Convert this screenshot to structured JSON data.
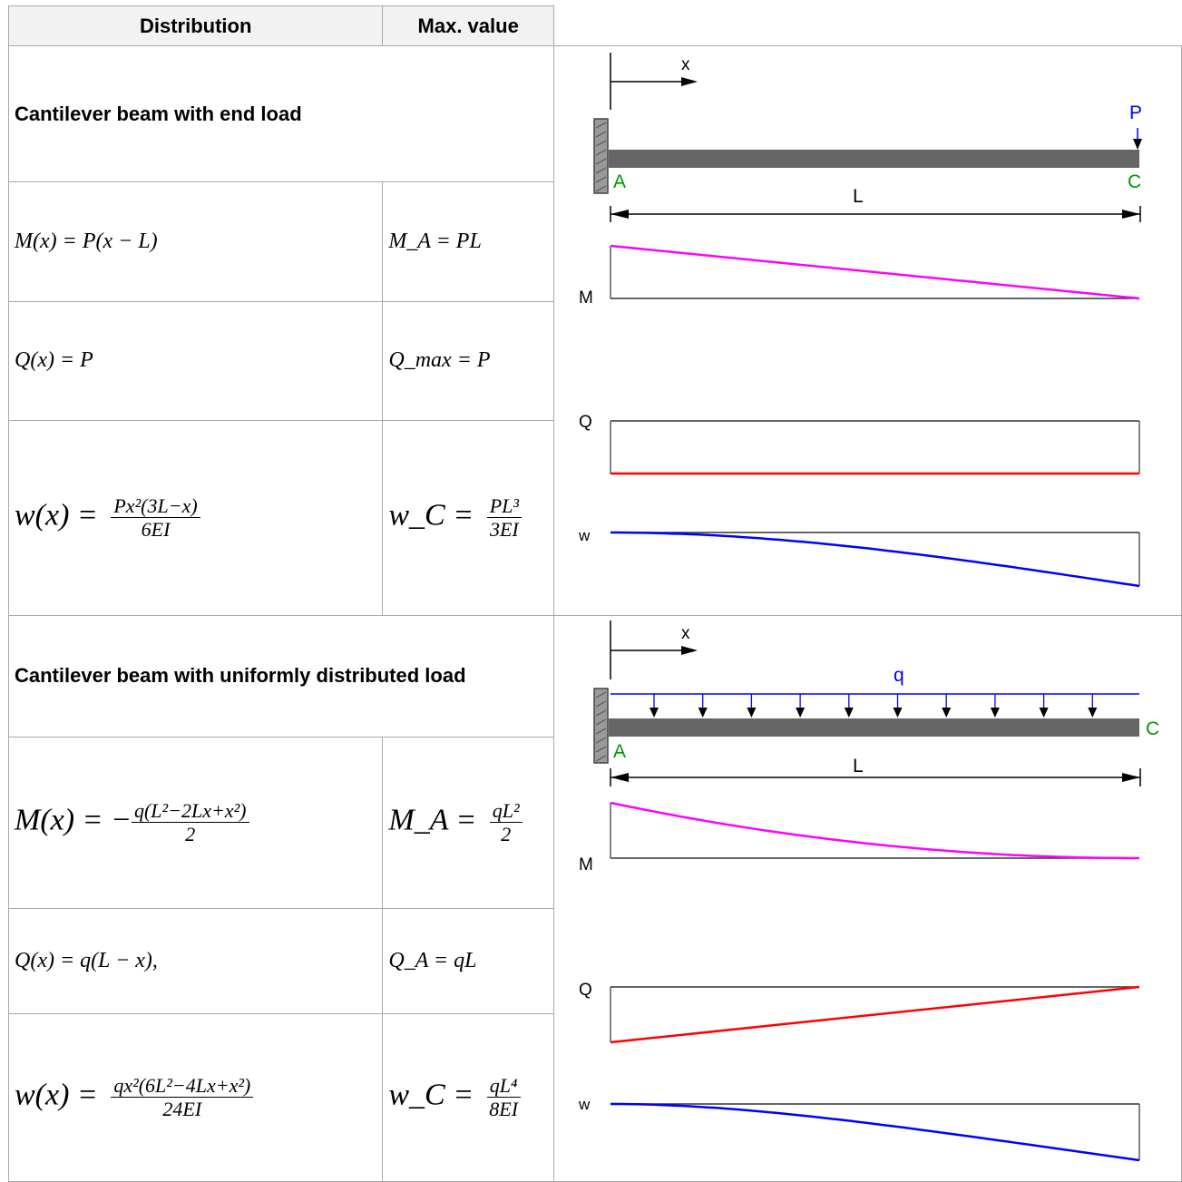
{
  "header": {
    "col_distribution": "Distribution",
    "col_max_value": "Max. value"
  },
  "case1": {
    "title": "Cantilever beam with end load",
    "moment": {
      "lhs": "M(x) = P(x − L)",
      "max": "M_A = PL"
    },
    "shear": {
      "lhs": "Q(x) = P",
      "max": "Q_max = P"
    },
    "deflection": {
      "lhs": "w(x) =",
      "num": "Px²(3L−x)",
      "den": "6EI",
      "max_lhs": "w_C =",
      "max_num": "PL³",
      "max_den": "3EI"
    },
    "diagram": {
      "x_label": "x",
      "load_label": "P",
      "point_a": "A",
      "point_c": "C",
      "length_label": "L",
      "m_label": "M",
      "q_label": "Q",
      "w_label": "w"
    }
  },
  "case2": {
    "title": "Cantilever beam with uniformly distributed load",
    "moment": {
      "lhs": "M(x) = −",
      "num": "q(L²−2Lx+x²)",
      "den": "2",
      "max_lhs": "M_A =",
      "max_num": "qL²",
      "max_den": "2"
    },
    "shear": {
      "lhs": "Q(x) = q(L − x),",
      "max": "Q_A = qL"
    },
    "deflection": {
      "lhs": "w(x) =",
      "num": "qx²(6L²−4Lx+x²)",
      "den": "24EI",
      "max_lhs": "w_C =",
      "max_num": "qL⁴",
      "max_den": "8EI"
    },
    "diagram": {
      "x_label": "x",
      "load_label": "q",
      "point_a": "A",
      "point_c": "C",
      "length_label": "L",
      "m_label": "M",
      "q_label": "Q",
      "w_label": "w"
    }
  },
  "colors": {
    "moment": "#ff00ff",
    "shear": "#ff0000",
    "deflection": "#0000ff",
    "load": "#0000ff",
    "points": "#009900",
    "beam": "#666666",
    "axis": "#333333"
  }
}
